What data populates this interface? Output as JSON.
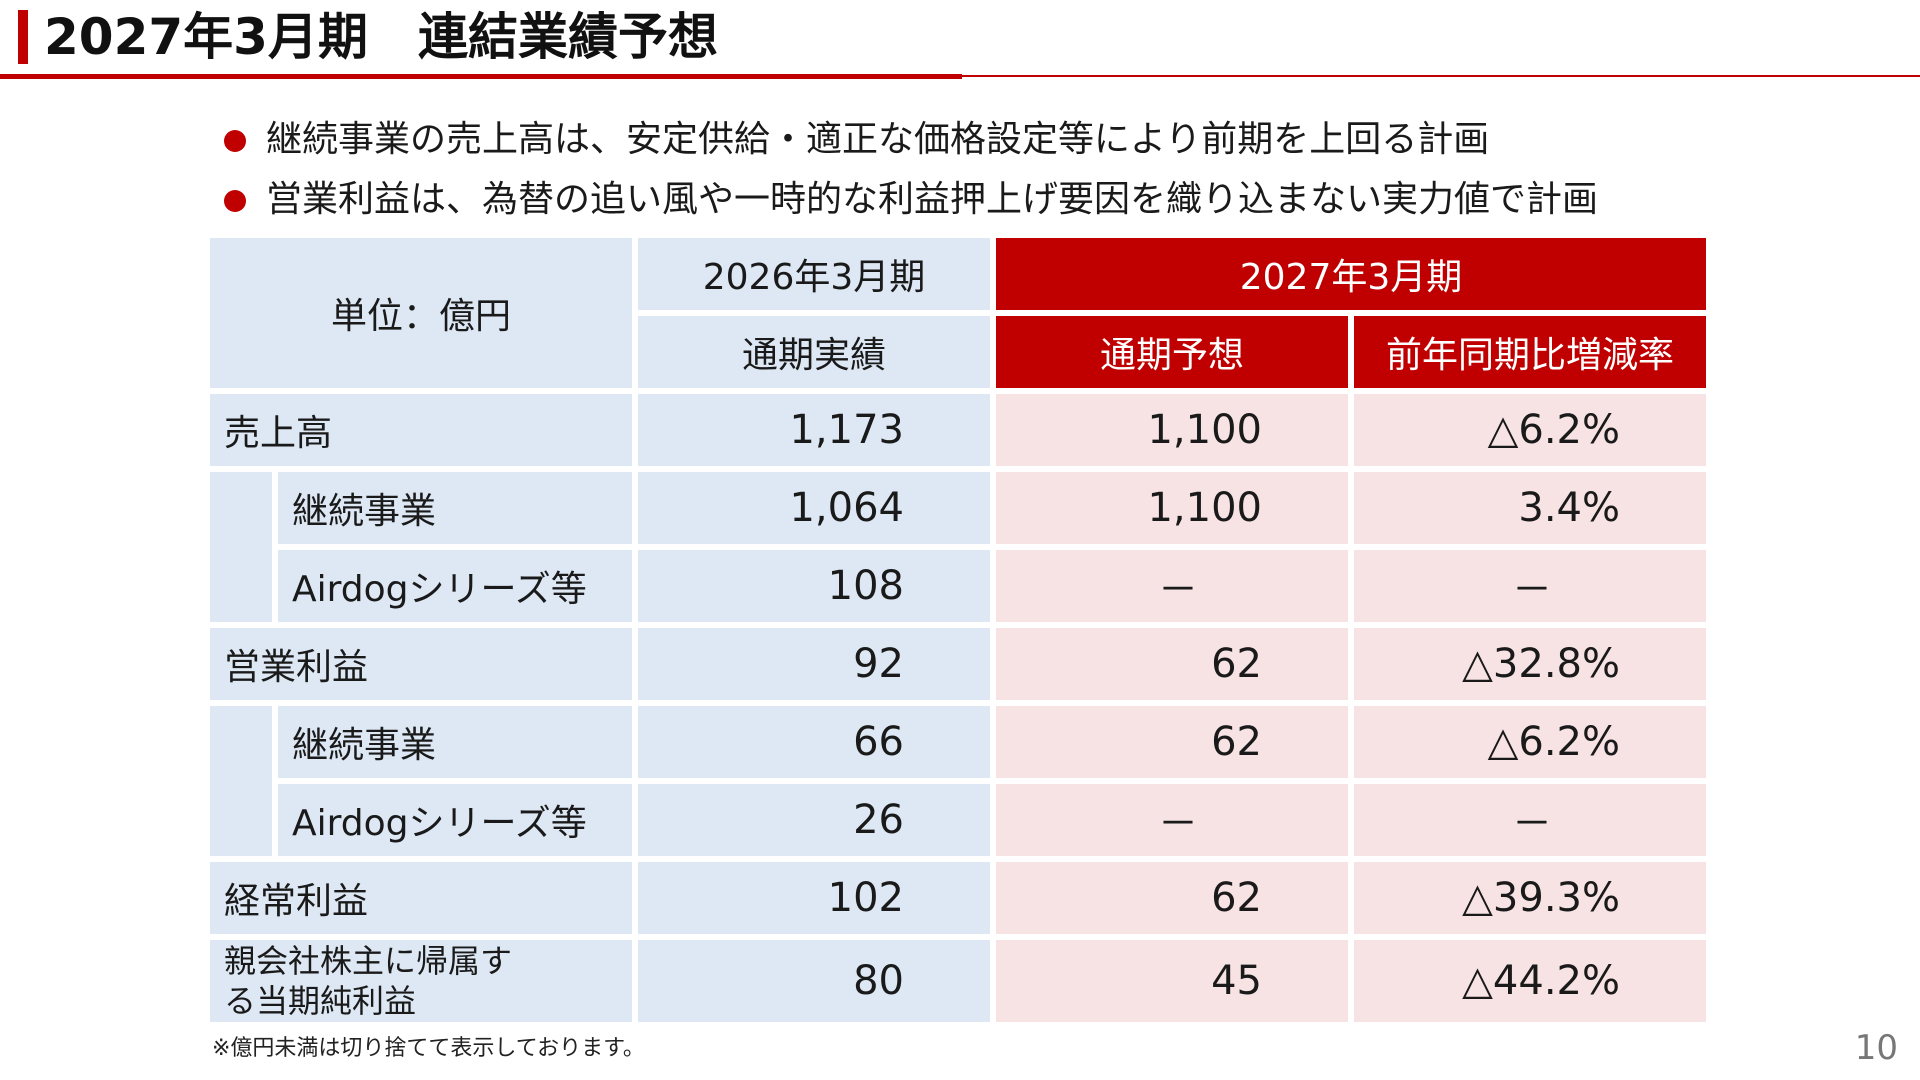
{
  "title": "2027年3月期　連結業績予想",
  "bullets": [
    "継続事業の売上高は、安定供給・適正な価格設定等により前期を上回る計画",
    "営業利益は、為替の追い風や一時的な利益押上げ要因を織り込まない実力値で計画"
  ],
  "table": {
    "unit_label": "単位：億円",
    "period_prev": "2026年3月期",
    "period_next": "2027年3月期",
    "col_actual": "通期実績",
    "col_forecast": "通期予想",
    "col_change": "前年同期比増減率",
    "rows": [
      {
        "label": "売上高",
        "actual": "1,173",
        "forecast": "1,100",
        "change": "△6.2%"
      },
      {
        "label": "継続事業",
        "actual": "1,064",
        "forecast": "1,100",
        "change": "3.4%"
      },
      {
        "label": "Airdogシリーズ等",
        "actual": "108",
        "forecast": "－",
        "change": "－"
      },
      {
        "label": "営業利益",
        "actual": "92",
        "forecast": "62",
        "change": "△32.8%"
      },
      {
        "label": "継続事業",
        "actual": "66",
        "forecast": "62",
        "change": "△6.2%"
      },
      {
        "label": "Airdogシリーズ等",
        "actual": "26",
        "forecast": "－",
        "change": "－"
      },
      {
        "label": "経常利益",
        "actual": "102",
        "forecast": "62",
        "change": "△39.3%"
      },
      {
        "label": "親会社株主に帰属する当期純利益",
        "actual": "80",
        "forecast": "45",
        "change": "△44.2%"
      }
    ]
  },
  "note": "※億円未満は切り捨てて表示しております。",
  "page_number": "10",
  "colors": {
    "accent": "#c00000",
    "light_blue": "#dde8f4",
    "light_pink": "#f8e3e4"
  }
}
